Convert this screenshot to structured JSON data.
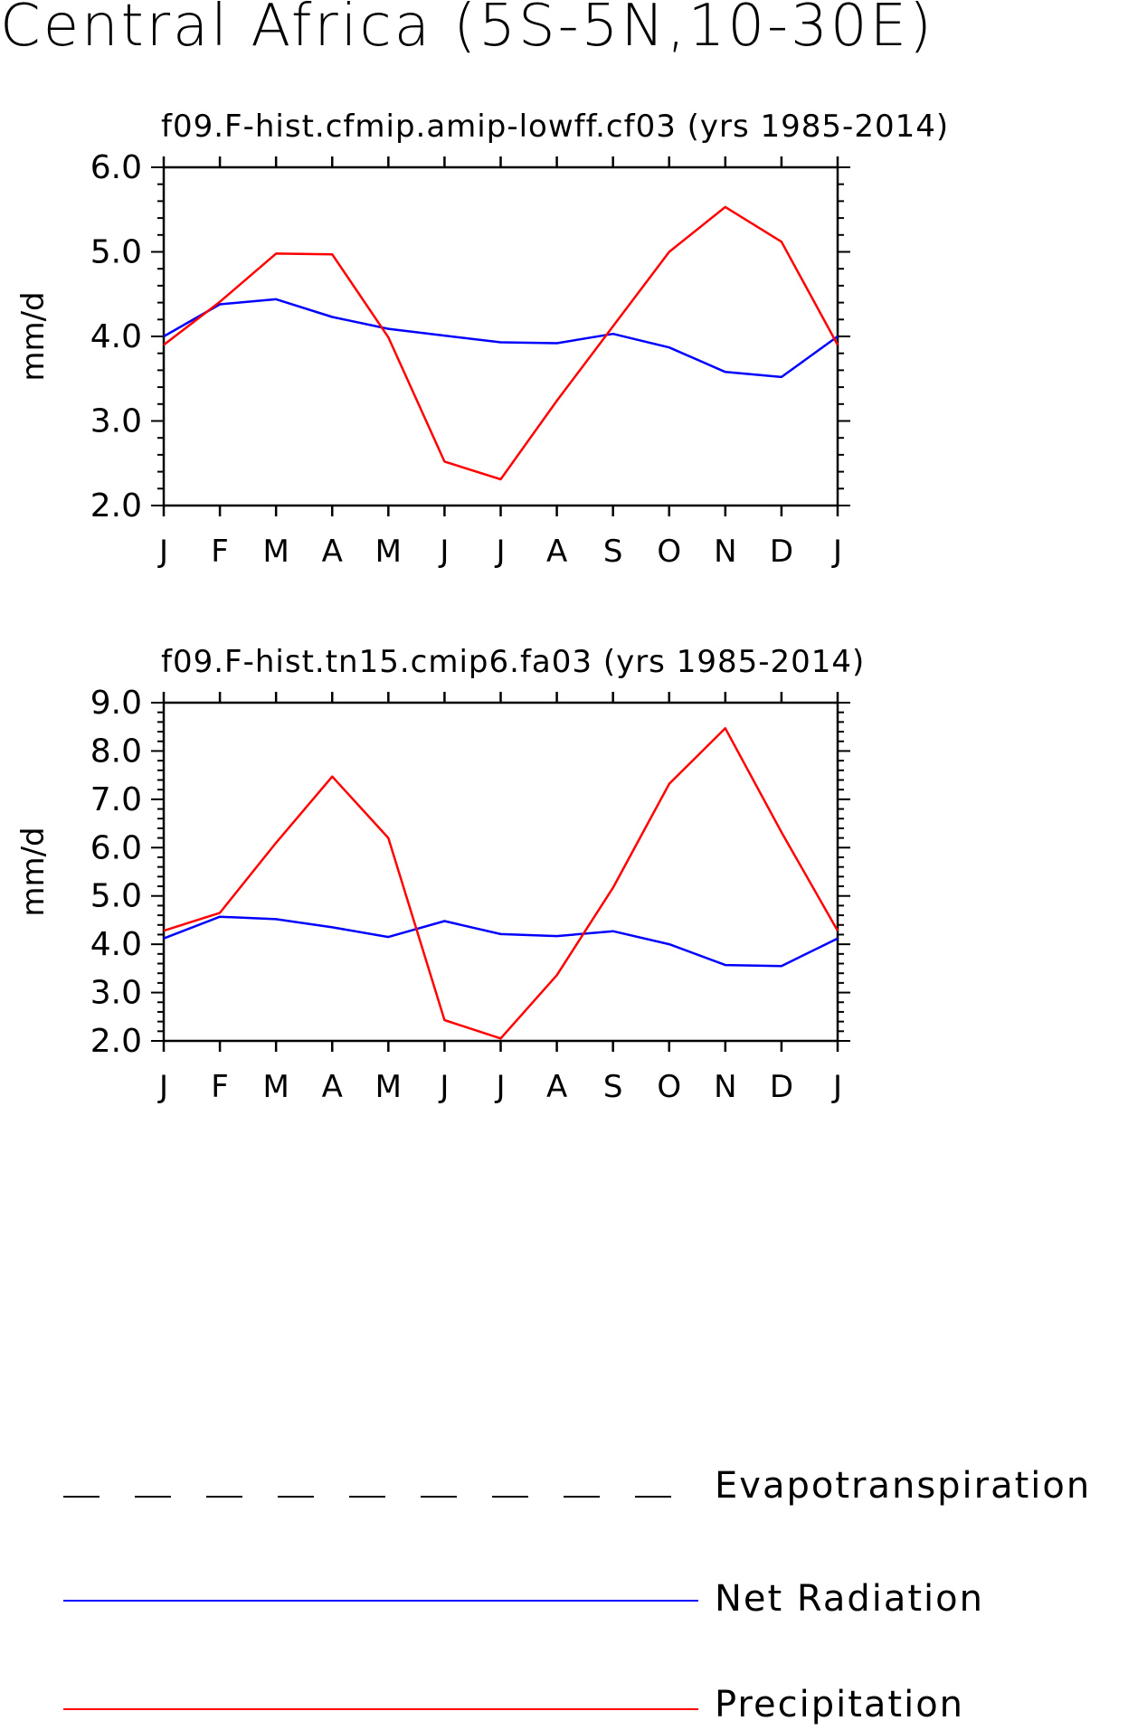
{
  "page_title": "Central Africa (5S-5N,10-30E)",
  "colors": {
    "net_radiation": "#0000ff",
    "precipitation": "#ff0000",
    "evapotranspiration": "#000000"
  },
  "chart_data": [
    {
      "type": "line",
      "title": "f09.F-hist.cfmip.amip-lowff.cf03 (yrs 1985-2014)",
      "xlabel": "",
      "ylabel": "mm/d",
      "categories": [
        "J",
        "F",
        "M",
        "A",
        "M",
        "J",
        "J",
        "A",
        "S",
        "O",
        "N",
        "D",
        "J"
      ],
      "ylim": [
        2.0,
        6.0
      ],
      "yticks": [
        "2.0",
        "3.0",
        "4.0",
        "5.0",
        "6.0"
      ],
      "series": [
        {
          "name": "Net Radiation",
          "color": "#0000ff",
          "values": [
            4.0,
            4.38,
            4.44,
            4.23,
            4.09,
            4.01,
            3.93,
            3.92,
            4.03,
            3.87,
            3.58,
            3.52,
            4.0
          ]
        },
        {
          "name": "Precipitation",
          "color": "#ff0000",
          "values": [
            3.9,
            4.41,
            4.98,
            4.97,
            3.99,
            2.52,
            2.31,
            3.24,
            4.12,
            5.0,
            5.53,
            5.12,
            3.9
          ]
        }
      ]
    },
    {
      "type": "line",
      "title": "f09.F-hist.tn15.cmip6.fa03 (yrs 1985-2014)",
      "xlabel": "",
      "ylabel": "mm/d",
      "categories": [
        "J",
        "F",
        "M",
        "A",
        "M",
        "J",
        "J",
        "A",
        "S",
        "O",
        "N",
        "D",
        "J"
      ],
      "ylim": [
        2.0,
        9.0
      ],
      "yticks": [
        "2.0",
        "3.0",
        "4.0",
        "5.0",
        "6.0",
        "7.0",
        "8.0",
        "9.0"
      ],
      "series": [
        {
          "name": "Net Radiation",
          "color": "#0000ff",
          "values": [
            4.12,
            4.57,
            4.52,
            4.35,
            4.15,
            4.48,
            4.21,
            4.17,
            4.27,
            4.0,
            3.57,
            3.55,
            4.12
          ]
        },
        {
          "name": "Precipitation",
          "color": "#ff0000",
          "values": [
            4.28,
            4.65,
            6.1,
            7.47,
            6.2,
            2.43,
            2.05,
            3.36,
            5.17,
            7.32,
            8.47,
            6.32,
            4.28
          ]
        }
      ]
    }
  ],
  "legend": {
    "placement": "bottom",
    "items": [
      {
        "label": "Evapotranspiration",
        "style": "dashed",
        "color": "#000000"
      },
      {
        "label": "Net Radiation",
        "style": "solid",
        "color": "#0000ff"
      },
      {
        "label": "Precipitation",
        "style": "solid",
        "color": "#ff0000"
      }
    ]
  }
}
